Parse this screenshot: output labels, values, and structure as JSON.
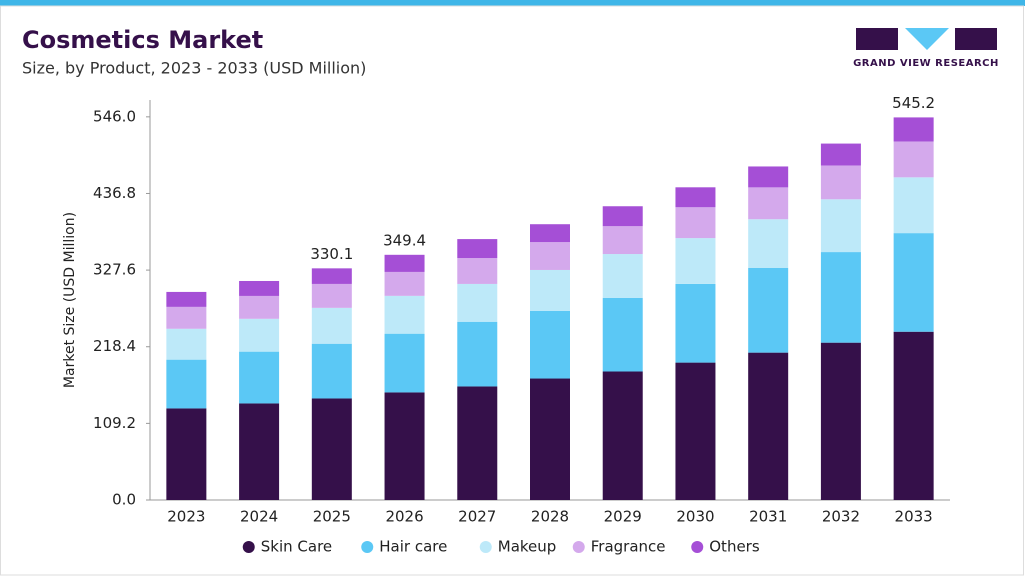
{
  "chart_data": {
    "type": "stacked-bar",
    "title": "Cosmetics Market",
    "subtitle": "Size, by Product, 2023 - 2033 (USD Million)",
    "logo_text": "GRAND VIEW RESEARCH",
    "y_label": "Market Size (USD Million)",
    "categories": [
      "2023",
      "2024",
      "2025",
      "2026",
      "2027",
      "2028",
      "2029",
      "2030",
      "2031",
      "2032",
      "2033"
    ],
    "series": [
      {
        "name": "Skin Care",
        "color": "#35104a",
        "values": [
          130.5,
          137.6,
          144.7,
          153.3,
          161.8,
          173.1,
          183.1,
          195.8,
          210.0,
          224.2,
          239.8
        ]
      },
      {
        "name": "Hair care",
        "color": "#5bc8f5",
        "values": [
          69.5,
          73.8,
          78.0,
          83.7,
          92.2,
          96.5,
          105.0,
          112.1,
          120.6,
          129.1,
          140.5
        ]
      },
      {
        "name": "Makeup",
        "color": "#bde9f9",
        "values": [
          44.0,
          46.8,
          51.1,
          53.9,
          53.9,
          58.2,
          62.4,
          65.3,
          69.5,
          75.2,
          79.5
        ]
      },
      {
        "name": "Fragrance",
        "color": "#d4a9ec",
        "values": [
          31.2,
          32.6,
          34.1,
          34.1,
          36.9,
          39.7,
          39.7,
          44.0,
          45.4,
          48.2,
          51.1
        ]
      },
      {
        "name": "Others",
        "color": "#a54fd6",
        "values": [
          21.3,
          21.3,
          22.2,
          24.4,
          27.0,
          25.5,
          28.4,
          28.4,
          29.8,
          31.2,
          34.3
        ]
      }
    ],
    "total_labels": [
      {
        "category": "2025",
        "value": 330.1
      },
      {
        "category": "2026",
        "value": 349.4
      },
      {
        "category": "2033",
        "value": 545.2
      }
    ],
    "ylim": [
      0,
      570
    ],
    "yticks": [
      {
        "value": 0,
        "label": "0.0"
      },
      109.2,
      218.4,
      327.6,
      436.8,
      {
        "value": 546,
        "label": "546.0"
      }
    ]
  }
}
